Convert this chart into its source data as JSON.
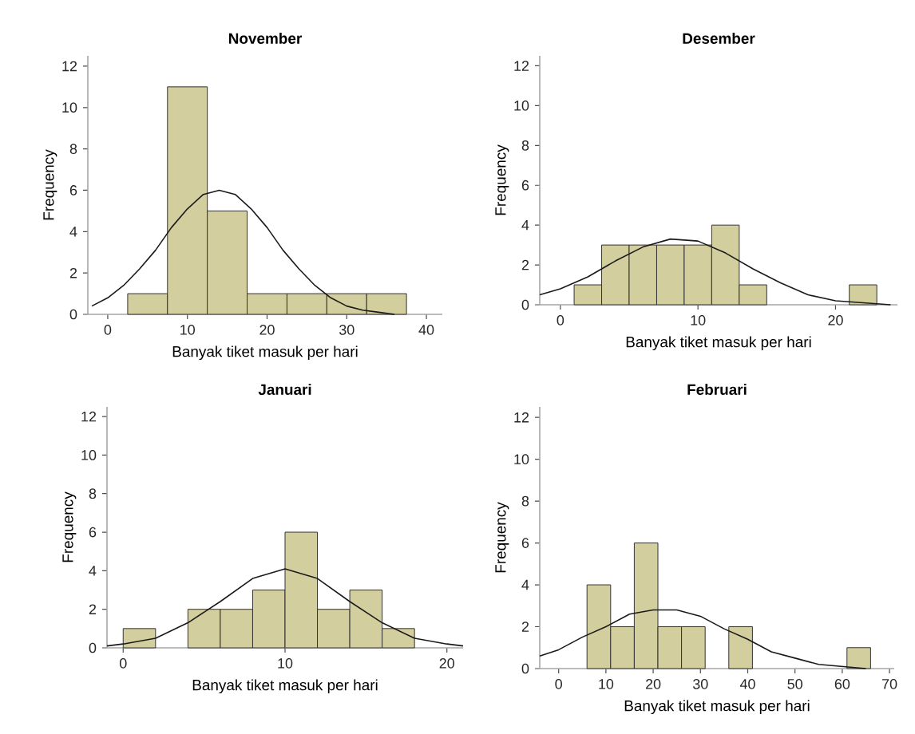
{
  "chart_data": [
    {
      "type": "histogram",
      "title": "November",
      "xlabel": "Banyak tiket masuk per hari",
      "ylabel": "Frequency",
      "bins": [
        2.5,
        7.5,
        12.5,
        17.5,
        22.5,
        27.5,
        32.5,
        37.5
      ],
      "values": [
        1,
        11,
        5,
        1,
        1,
        1,
        1
      ],
      "color": "#d3ce9d",
      "xlim": [
        -2.5,
        42
      ],
      "ylim": [
        0,
        12.5
      ],
      "xticks": [
        0,
        10,
        20,
        30,
        40
      ],
      "yticks": [
        0,
        2,
        4,
        6,
        8,
        10,
        12
      ],
      "grid": false,
      "series": [
        {
          "type": "line",
          "color": "#1a1a1a",
          "x": [
            -2,
            0,
            2,
            4,
            6,
            8,
            10,
            12,
            14,
            16,
            18,
            20,
            22,
            24,
            26,
            28,
            30,
            32,
            34,
            36
          ],
          "values": [
            0.4,
            0.8,
            1.4,
            2.2,
            3.1,
            4.2,
            5.1,
            5.8,
            6,
            5.8,
            5.1,
            4.2,
            3.1,
            2.2,
            1.4,
            0.8,
            0.4,
            0.2,
            0.1,
            0
          ]
        }
      ]
    },
    {
      "type": "histogram",
      "title": "Desember",
      "xlabel": "Banyak tiket masuk per hari",
      "ylabel": "Frequency",
      "bins": [
        1,
        3,
        5,
        7,
        9,
        11,
        13,
        15,
        17,
        19,
        21,
        23
      ],
      "values": [
        1,
        3,
        3,
        3,
        3,
        4,
        1,
        0,
        0,
        0,
        1
      ],
      "color": "#d3ce9d",
      "xlim": [
        -1.5,
        24.5
      ],
      "ylim": [
        0,
        12.5
      ],
      "xticks": [
        0,
        10,
        20
      ],
      "yticks": [
        0,
        2,
        4,
        6,
        8,
        10,
        12
      ],
      "grid": false,
      "series": [
        {
          "type": "line",
          "color": "#1a1a1a",
          "x": [
            -1.5,
            0,
            2,
            4,
            6,
            8,
            10,
            12,
            14,
            16,
            18,
            20,
            22,
            24
          ],
          "values": [
            0.5,
            0.8,
            1.4,
            2.2,
            2.9,
            3.3,
            3.2,
            2.6,
            1.8,
            1.1,
            0.5,
            0.2,
            0.1,
            0
          ]
        }
      ]
    },
    {
      "type": "histogram",
      "title": "Januari",
      "xlabel": "Banyak tiket masuk per hari",
      "ylabel": "Frequency",
      "bins": [
        0,
        2,
        4,
        6,
        8,
        10,
        12,
        14,
        16,
        18
      ],
      "values": [
        1,
        0,
        2,
        2,
        3,
        6,
        2,
        3,
        1
      ],
      "color": "#d3ce9d",
      "xlim": [
        -1,
        21
      ],
      "ylim": [
        0,
        12.5
      ],
      "xticks": [
        0,
        10,
        20
      ],
      "yticks": [
        0,
        2,
        4,
        6,
        8,
        10,
        12
      ],
      "grid": false,
      "series": [
        {
          "type": "line",
          "color": "#1a1a1a",
          "x": [
            -1,
            0,
            2,
            4,
            6,
            8,
            10,
            12,
            14,
            16,
            18,
            20,
            21
          ],
          "values": [
            0.1,
            0.2,
            0.5,
            1.3,
            2.4,
            3.6,
            4.1,
            3.6,
            2.4,
            1.3,
            0.5,
            0.2,
            0.1
          ]
        }
      ]
    },
    {
      "type": "histogram",
      "title": "Februari",
      "xlabel": "Banyak tiket masuk per hari",
      "ylabel": "Frequency",
      "bins": [
        6,
        11,
        16,
        21,
        26,
        31,
        36,
        41,
        46,
        51,
        56,
        61,
        66
      ],
      "values": [
        4,
        2,
        6,
        2,
        2,
        0,
        2,
        0,
        0,
        0,
        0,
        1
      ],
      "color": "#d3ce9d",
      "xlim": [
        -4,
        71
      ],
      "ylim": [
        0,
        12.5
      ],
      "xticks": [
        0,
        10,
        20,
        30,
        40,
        50,
        60,
        70
      ],
      "yticks": [
        0,
        2,
        4,
        6,
        8,
        10,
        12
      ],
      "grid": false,
      "series": [
        {
          "type": "line",
          "color": "#1a1a1a",
          "x": [
            -4,
            0,
            5,
            10,
            15,
            20,
            25,
            30,
            35,
            40,
            45,
            50,
            55,
            60,
            65
          ],
          "values": [
            0.6,
            0.9,
            1.5,
            2,
            2.6,
            2.8,
            2.8,
            2.5,
            1.9,
            1.4,
            0.8,
            0.5,
            0.2,
            0.1,
            0
          ]
        }
      ]
    }
  ]
}
